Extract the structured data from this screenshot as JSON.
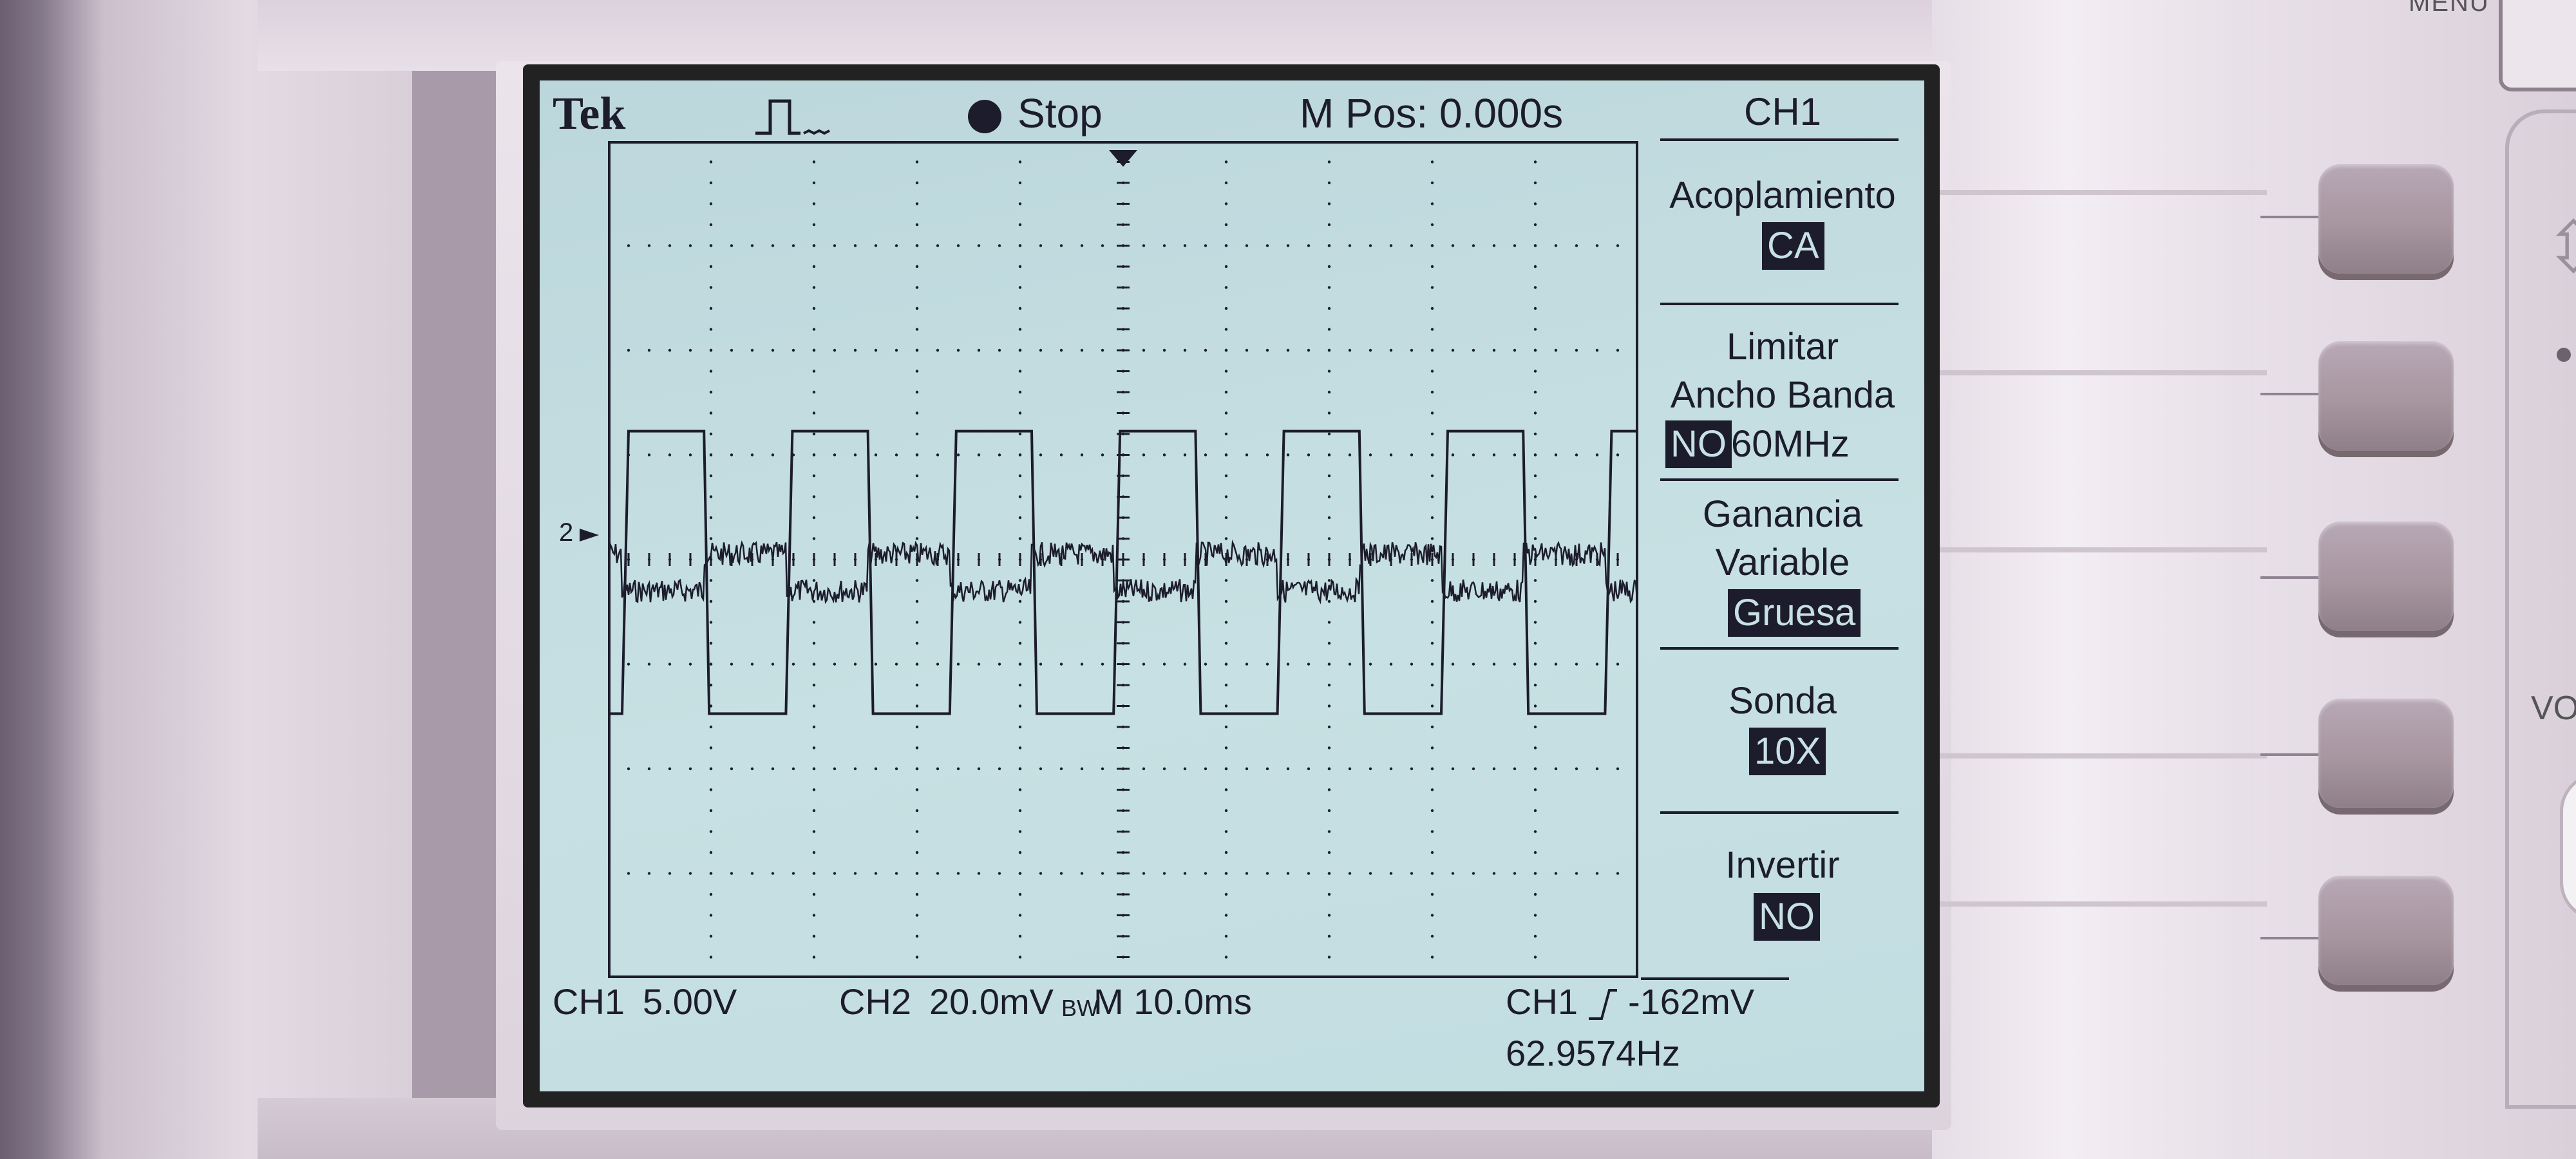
{
  "brand": "Tek",
  "acquisition": {
    "state": "Stop"
  },
  "horizontal": {
    "position": "M Pos: 0.000s",
    "timebase": "M 10.0ms"
  },
  "channels": {
    "ch1": {
      "label": "CH1",
      "scale": "5.00V"
    },
    "ch2": {
      "label": "CH2",
      "scale": "20.0mV",
      "bw_mark": "BW"
    },
    "ground_marker": "2"
  },
  "trigger": {
    "source": "CH1",
    "level": "-162mV",
    "frequency": "62.9574Hz"
  },
  "side_menu": {
    "title": "CH1",
    "items": [
      {
        "label_lines": [
          "Acoplamiento"
        ],
        "value": "CA"
      },
      {
        "label_lines": [
          "Limitar",
          "Ancho Banda"
        ],
        "value": "NO",
        "alt_value": "60MHz"
      },
      {
        "label_lines": [
          "Ganancia",
          "Variable"
        ],
        "value": "Gruesa"
      },
      {
        "label_lines": [
          "Sonda"
        ],
        "value": "10X"
      },
      {
        "label_lines": [
          "Invertir"
        ],
        "value": "NO"
      }
    ]
  },
  "panel": {
    "menu_label": "MENU",
    "knob_label": "VO"
  },
  "waveforms": {
    "grid": {
      "hdiv": 10,
      "vdiv": 8
    },
    "ch1_square": {
      "frequency_hz": 62.9574,
      "period_div": 1.59,
      "high_div": 1.35,
      "low_div": -1.35
    },
    "ch2_noise": {
      "amplitude_div": 0.32
    }
  },
  "colors": {
    "screen": "#c7e0e3",
    "trace": "#1c1c2c",
    "bezel": "#e6dee6",
    "button": "#a7969f"
  }
}
